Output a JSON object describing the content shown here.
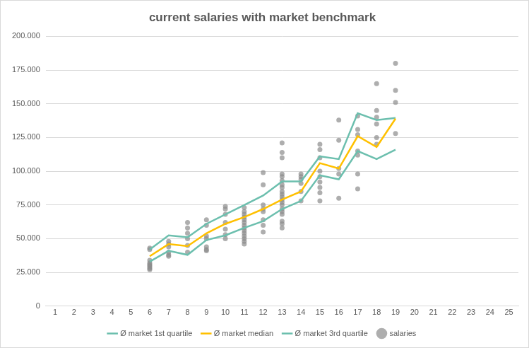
{
  "chart_data": {
    "type": "line",
    "title": "current salaries with market benchmark",
    "xlim": [
      0.5,
      25.5
    ],
    "xticks": [
      1,
      2,
      3,
      4,
      5,
      6,
      7,
      8,
      9,
      10,
      11,
      12,
      13,
      14,
      15,
      16,
      17,
      18,
      19,
      20,
      21,
      22,
      23,
      24,
      25
    ],
    "ylim": [
      0,
      200000
    ],
    "yticks": [
      0,
      {
        "value": 25000,
        "label": "25.000"
      },
      {
        "value": 50000,
        "label": "50.000"
      },
      {
        "value": 75000,
        "label": "75.000"
      },
      {
        "value": 100000,
        "label": "100.000"
      },
      {
        "value": 125000,
        "label": "125.000"
      },
      {
        "value": 150000,
        "label": "150.000"
      },
      {
        "value": 175000,
        "label": "175.000"
      },
      {
        "value": 200000,
        "label": "200.000"
      }
    ],
    "grid": "y",
    "legend": "bottom",
    "series": [
      {
        "name": "salaries",
        "type": "scatter",
        "marker": "circle",
        "color": "#8c8c8c",
        "x": [
          6,
          6,
          6,
          6,
          6,
          6,
          6,
          6,
          6,
          7,
          7,
          7,
          7,
          7,
          7,
          8,
          8,
          8,
          8,
          8,
          8,
          9,
          9,
          9,
          9,
          9,
          9,
          9,
          10,
          10,
          10,
          10,
          10,
          10,
          10,
          11,
          11,
          11,
          11,
          11,
          11,
          11,
          11,
          11,
          11,
          11,
          11,
          11,
          11,
          12,
          12,
          12,
          12,
          12,
          12,
          12,
          12,
          13,
          13,
          13,
          13,
          13,
          13,
          13,
          13,
          13,
          13,
          13,
          13,
          13,
          13,
          13,
          13,
          13,
          13,
          13,
          13,
          14,
          14,
          14,
          14,
          14,
          14,
          15,
          15,
          15,
          15,
          15,
          15,
          15,
          15,
          15,
          16,
          16,
          16,
          16,
          16,
          17,
          17,
          17,
          17,
          17,
          17,
          17,
          18,
          18,
          18,
          18,
          18,
          18,
          19,
          19,
          19,
          19
        ],
        "values": [
          43000,
          42000,
          34000,
          32000,
          31000,
          30000,
          29000,
          28000,
          27000,
          48000,
          46000,
          44000,
          40000,
          38000,
          37000,
          62000,
          58000,
          54000,
          50000,
          45000,
          40000,
          64000,
          60000,
          52000,
          50000,
          44000,
          42000,
          41000,
          74000,
          72000,
          68000,
          62000,
          57000,
          53000,
          50000,
          73000,
          70000,
          68000,
          66000,
          64000,
          62000,
          60000,
          58000,
          56000,
          54000,
          52000,
          50000,
          48000,
          46000,
          99000,
          90000,
          75000,
          72000,
          70000,
          64000,
          60000,
          55000,
          121000,
          114000,
          110000,
          98000,
          96000,
          93000,
          90000,
          88000,
          85000,
          83000,
          81000,
          79000,
          77000,
          75000,
          72000,
          70000,
          68000,
          63000,
          61000,
          58000,
          98000,
          96000,
          94000,
          91000,
          85000,
          78000,
          120000,
          116000,
          110000,
          100000,
          96000,
          92000,
          88000,
          84000,
          78000,
          138000,
          123000,
          102000,
          98000,
          80000,
          141000,
          131000,
          127000,
          115000,
          112000,
          98000,
          87000,
          165000,
          145000,
          140000,
          135000,
          125000,
          120000,
          180000,
          160000,
          151000,
          128000
        ]
      },
      {
        "name": "Ø market 1st quartile",
        "type": "line",
        "line_style": "solid",
        "color": "#6cbfae",
        "x": [
          6,
          7,
          8,
          9,
          10,
          11,
          12,
          13,
          14,
          15,
          16,
          17,
          18,
          19
        ],
        "values": [
          33000,
          41000,
          38000,
          49000,
          52500,
          58000,
          63000,
          72000,
          78000,
          97000,
          94000,
          115000,
          109000,
          116000
        ]
      },
      {
        "name": "Ø market median",
        "type": "line",
        "line_style": "solid",
        "color": "#ffc000",
        "x": [
          6,
          7,
          8,
          9,
          10,
          11,
          12,
          13,
          14,
          15,
          16,
          17,
          18,
          19
        ],
        "values": [
          37000,
          46000,
          44500,
          54000,
          61000,
          66000,
          72000,
          79000,
          85000,
          106000,
          102000,
          126000,
          118000,
          139000
        ]
      },
      {
        "name": "Ø market 3rd quartile",
        "type": "line",
        "line_style": "solid",
        "color": "#6cbfae",
        "x": [
          6,
          7,
          8,
          9,
          10,
          11,
          12,
          13,
          14,
          15,
          16,
          17,
          18,
          19
        ],
        "values": [
          42000,
          52500,
          51000,
          61000,
          68000,
          75000,
          82000,
          92500,
          92500,
          111000,
          109000,
          143000,
          138000,
          139500
        ]
      }
    ]
  }
}
